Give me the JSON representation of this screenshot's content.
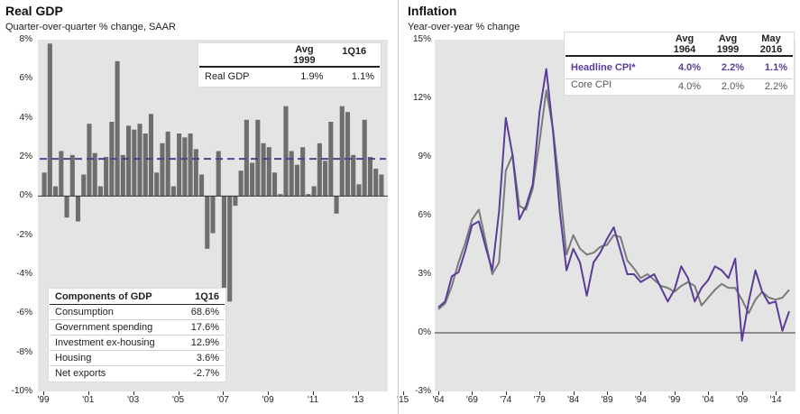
{
  "left": {
    "title": "Real GDP",
    "subtitle": "Quarter-over-quarter % change, SAAR",
    "y_tick_labels": [
      "8%",
      "6%",
      "4%",
      "2%",
      "0%",
      "-2%",
      "-4%",
      "-6%",
      "-8%",
      "-10%"
    ],
    "x_tick_labels": [
      "'99",
      "'01",
      "'03",
      "'05",
      "'07",
      "'09",
      "'11",
      "'13",
      "'15"
    ],
    "summary_table": {
      "col1": "Avg 1999",
      "col1_line1": "Avg",
      "col1_line2": "1999",
      "col2": "1Q16",
      "row_label": "Real GDP",
      "val1": "1.9%",
      "val2": "1.1%"
    },
    "components_table": {
      "header_label": "Components of GDP",
      "header_col": "1Q16",
      "rows": [
        {
          "label": "Consumption",
          "value": "68.6%"
        },
        {
          "label": "Government spending",
          "value": "17.6%"
        },
        {
          "label": "Investment ex-housing",
          "value": "12.9%"
        },
        {
          "label": "Housing",
          "value": "3.6%"
        },
        {
          "label": "Net exports",
          "value": "-2.7%"
        }
      ]
    }
  },
  "right": {
    "title": "Inflation",
    "subtitle": "Year-over-year % change",
    "y_tick_labels": [
      "15%",
      "12%",
      "9%",
      "6%",
      "3%",
      "0%",
      "-3%"
    ],
    "x_tick_labels": [
      "'64",
      "'69",
      "'74",
      "'79",
      "'84",
      "'89",
      "'94",
      "'99",
      "'04",
      "'09",
      "'14"
    ],
    "table": {
      "h1a": "Avg",
      "h1b": "1964",
      "h2a": "Avg",
      "h2b": "1999",
      "h3a": "May",
      "h3b": "2016",
      "rows": [
        {
          "label": "Headline CPI*",
          "v1": "4.0%",
          "v2": "2.2%",
          "v3": "1.1%"
        },
        {
          "label": "Core CPI",
          "v1": "4.0%",
          "v2": "2.0%",
          "v3": "2.2%"
        }
      ]
    }
  },
  "colors": {
    "bar": "#6e6e6e",
    "avg_line": "#5a3d8f",
    "headline": "#5b3c96",
    "core": "#7a7a7a",
    "plot_bg": "#e4e4e4"
  },
  "chart_data": [
    {
      "type": "bar",
      "title": "Real GDP",
      "subtitle": "Quarter-over-quarter % change, SAAR",
      "x_start": "1999 Q1",
      "x_tick_labels": [
        "'99",
        "'01",
        "'03",
        "'05",
        "'07",
        "'09",
        "'11",
        "'13",
        "'15"
      ],
      "ylim": [
        -10,
        8
      ],
      "values": [
        1.2,
        7.8,
        0.5,
        2.3,
        -1.1,
        2.1,
        -1.3,
        1.1,
        3.7,
        2.2,
        0.5,
        2.0,
        3.8,
        6.9,
        2.1,
        3.6,
        3.4,
        3.7,
        3.2,
        4.2,
        1.2,
        2.7,
        3.3,
        0.5,
        3.2,
        3.0,
        3.2,
        2.4,
        1.1,
        -2.7,
        -1.9,
        2.3,
        -8.2,
        -5.4,
        -0.5,
        1.3,
        3.9,
        1.7,
        3.9,
        2.7,
        2.5,
        1.2,
        0.1,
        4.6,
        2.3,
        1.6,
        2.5,
        0.1,
        0.5,
        2.7,
        1.8,
        3.8,
        -0.9,
        4.6,
        4.3,
        2.1,
        0.6,
        3.9,
        2.0,
        1.4,
        1.1
      ],
      "average_line": 1.9,
      "grid": false
    },
    {
      "type": "line",
      "title": "Inflation",
      "subtitle": "Year-over-year % change",
      "x_tick_labels": [
        "'64",
        "'69",
        "'74",
        "'79",
        "'84",
        "'89",
        "'94",
        "'99",
        "'04",
        "'09",
        "'14"
      ],
      "x_years": [
        1964,
        1965,
        1966,
        1967,
        1968,
        1969,
        1970,
        1971,
        1972,
        1973,
        1974,
        1975,
        1976,
        1977,
        1978,
        1979,
        1980,
        1981,
        1982,
        1983,
        1984,
        1985,
        1986,
        1987,
        1988,
        1989,
        1990,
        1991,
        1992,
        1993,
        1994,
        1995,
        1996,
        1997,
        1998,
        1999,
        2000,
        2001,
        2002,
        2003,
        2004,
        2005,
        2006,
        2007,
        2008,
        2009,
        2010,
        2011,
        2012,
        2013,
        2014,
        2015,
        2016
      ],
      "ylim": [
        -3,
        15
      ],
      "series": [
        {
          "name": "Headline CPI*",
          "values": [
            1.3,
            1.6,
            2.9,
            3.1,
            4.2,
            5.5,
            5.7,
            4.4,
            3.2,
            6.2,
            11.0,
            9.1,
            5.8,
            6.5,
            7.6,
            11.3,
            13.5,
            10.3,
            6.2,
            3.2,
            4.3,
            3.6,
            1.9,
            3.6,
            4.1,
            4.8,
            5.4,
            4.2,
            3.0,
            3.0,
            2.6,
            2.8,
            3.0,
            2.3,
            1.6,
            2.2,
            3.4,
            2.8,
            1.6,
            2.3,
            2.7,
            3.4,
            3.2,
            2.8,
            3.8,
            -0.4,
            1.6,
            3.2,
            2.1,
            1.5,
            1.6,
            0.1,
            1.1
          ]
        },
        {
          "name": "Core CPI",
          "values": [
            1.2,
            1.5,
            2.4,
            3.6,
            4.6,
            5.8,
            6.3,
            4.7,
            3.0,
            3.6,
            8.3,
            9.1,
            6.5,
            6.3,
            7.4,
            9.8,
            12.4,
            10.4,
            7.4,
            4.0,
            5.0,
            4.3,
            4.0,
            4.1,
            4.4,
            4.5,
            5.0,
            4.9,
            3.7,
            3.3,
            2.8,
            3.0,
            2.7,
            2.4,
            2.3,
            2.1,
            2.4,
            2.6,
            2.4,
            1.4,
            1.8,
            2.2,
            2.5,
            2.3,
            2.3,
            1.7,
            1.0,
            1.7,
            2.1,
            1.8,
            1.7,
            1.8,
            2.2
          ]
        }
      ],
      "grid": false
    }
  ]
}
